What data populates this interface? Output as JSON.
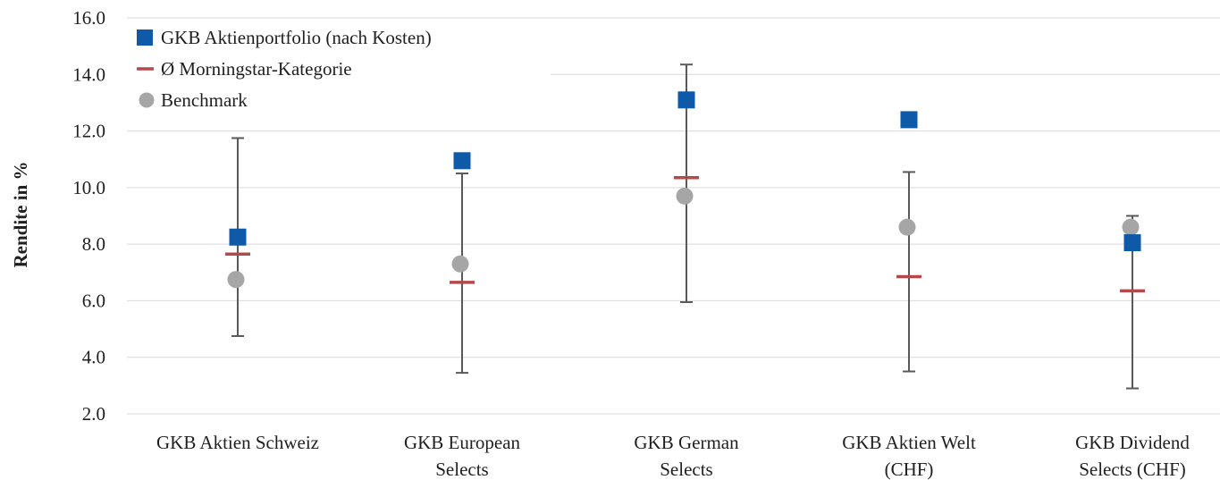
{
  "chart_data": {
    "type": "scatter",
    "ylabel": "Rendite in %",
    "ylim": [
      2.0,
      16.0
    ],
    "yticks": [
      2.0,
      4.0,
      6.0,
      8.0,
      10.0,
      12.0,
      14.0,
      16.0
    ],
    "ytick_labels": [
      "2.0",
      "4.0",
      "6.0",
      "8.0",
      "10.0",
      "12.0",
      "14.0",
      "16.0"
    ],
    "grid": true,
    "legend_position": "top-left",
    "categories": [
      [
        "GKB Aktien Schweiz"
      ],
      [
        "GKB European",
        "Selects"
      ],
      [
        "GKB German",
        "Selects"
      ],
      [
        "GKB Aktien Welt",
        "(CHF)"
      ],
      [
        "GKB Dividend",
        "Selects (CHF)"
      ]
    ],
    "range": {
      "low": [
        4.75,
        3.45,
        5.95,
        3.5,
        2.9
      ],
      "high": [
        11.75,
        10.5,
        14.35,
        10.55,
        9.0
      ]
    },
    "series": [
      {
        "name": "GKB Aktienportfolio (nach Kosten)",
        "marker": "square",
        "color": "#0f5aa8",
        "values": [
          8.25,
          10.95,
          13.1,
          12.4,
          8.05
        ]
      },
      {
        "name": "Ø Morningstar-Kategorie",
        "marker": "dash",
        "color": "#b5484a",
        "values": [
          7.65,
          6.65,
          10.35,
          6.85,
          6.35
        ]
      },
      {
        "name": "Benchmark",
        "marker": "circle",
        "color": "#a6a6a6",
        "values": [
          6.75,
          7.3,
          9.7,
          8.6,
          8.6
        ]
      }
    ]
  }
}
